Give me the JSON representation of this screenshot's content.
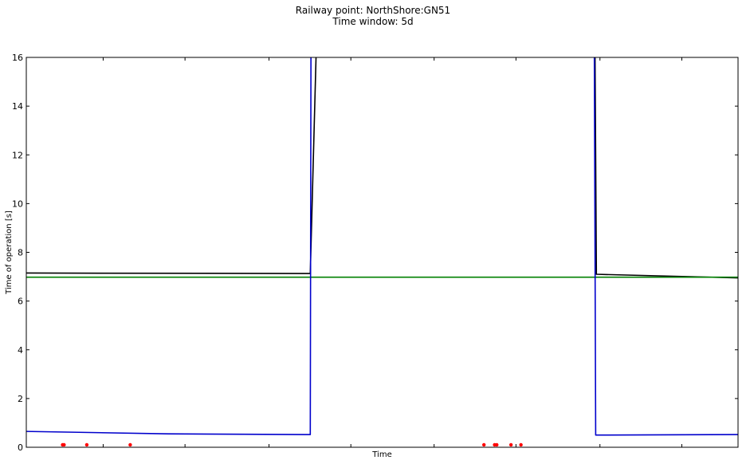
{
  "chart_data": {
    "type": "line",
    "title_lines": [
      "Railway point: NorthShore:GN51",
      "Time window: 5d"
    ],
    "xlabel": "Time",
    "ylabel": "Time of operation [s]",
    "xlim": [
      0,
      100
    ],
    "ylim": [
      0,
      16
    ],
    "yticks": [
      0,
      2,
      4,
      6,
      8,
      10,
      12,
      14,
      16
    ],
    "xticks_unlabeled": [
      10.8,
      22.3,
      34.1,
      45.6,
      57.3,
      68.8,
      80.6,
      92.1
    ],
    "grid": false,
    "series": [
      {
        "color": "#000000",
        "x": [
          0,
          39.9,
          40.8,
          45.0,
          74.4,
          79.9,
          80.1,
          100
        ],
        "y": [
          7.15,
          7.13,
          17,
          17,
          17,
          16.5,
          7.1,
          6.95
        ]
      },
      {
        "color": "#008000",
        "x": [
          0,
          100
        ],
        "y": [
          6.98,
          6.98
        ]
      },
      {
        "color": "#0000cc",
        "x": [
          0,
          20,
          39.9,
          40.0,
          79.8,
          80.0,
          100
        ],
        "y": [
          0.65,
          0.55,
          0.52,
          17,
          17,
          0.5,
          0.52
        ]
      }
    ],
    "markers": {
      "color": "#ff0000",
      "x": [
        5.1,
        5.3,
        8.5,
        14.6,
        64.3,
        65.8,
        66.1,
        68.1,
        69.5
      ],
      "y": [
        0.1,
        0.1,
        0.1,
        0.1,
        0.1,
        0.1,
        0.1,
        0.1,
        0.1
      ]
    }
  }
}
